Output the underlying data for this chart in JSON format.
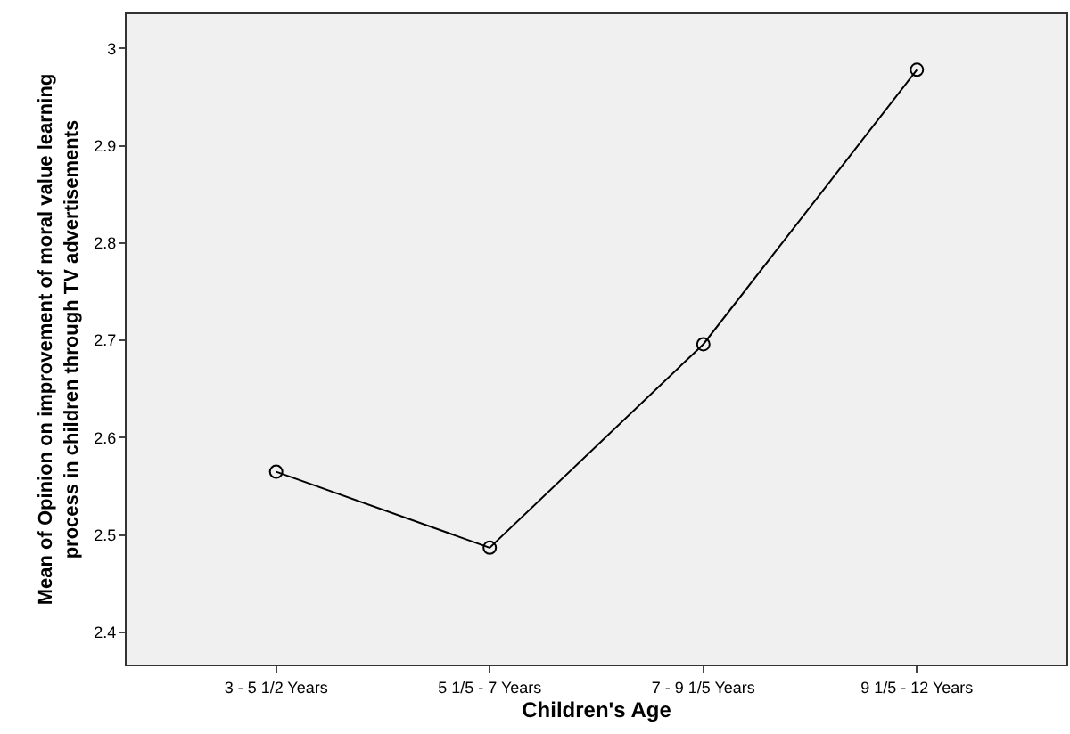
{
  "chart_data": {
    "type": "line",
    "xlabel": "Children's Age",
    "ylabel": "Mean of Opinion on improvement of moral value learning process in children through TV advertisements",
    "categories": [
      "3 - 5 1/2 Years",
      "5 1/5 - 7 Years",
      "7 - 9 1/5 Years",
      "9 1/5 - 12 Years"
    ],
    "series": [
      {
        "color": "#000000",
        "values": [
          2.565,
          2.487,
          2.696,
          2.978
        ]
      }
    ],
    "ylim": [
      2.367,
      3.035
    ],
    "yticks": [
      2.4,
      2.5,
      2.6,
      2.7,
      2.8,
      2.9,
      3
    ],
    "grid": false,
    "marker": "circle",
    "line_style": "solid"
  }
}
